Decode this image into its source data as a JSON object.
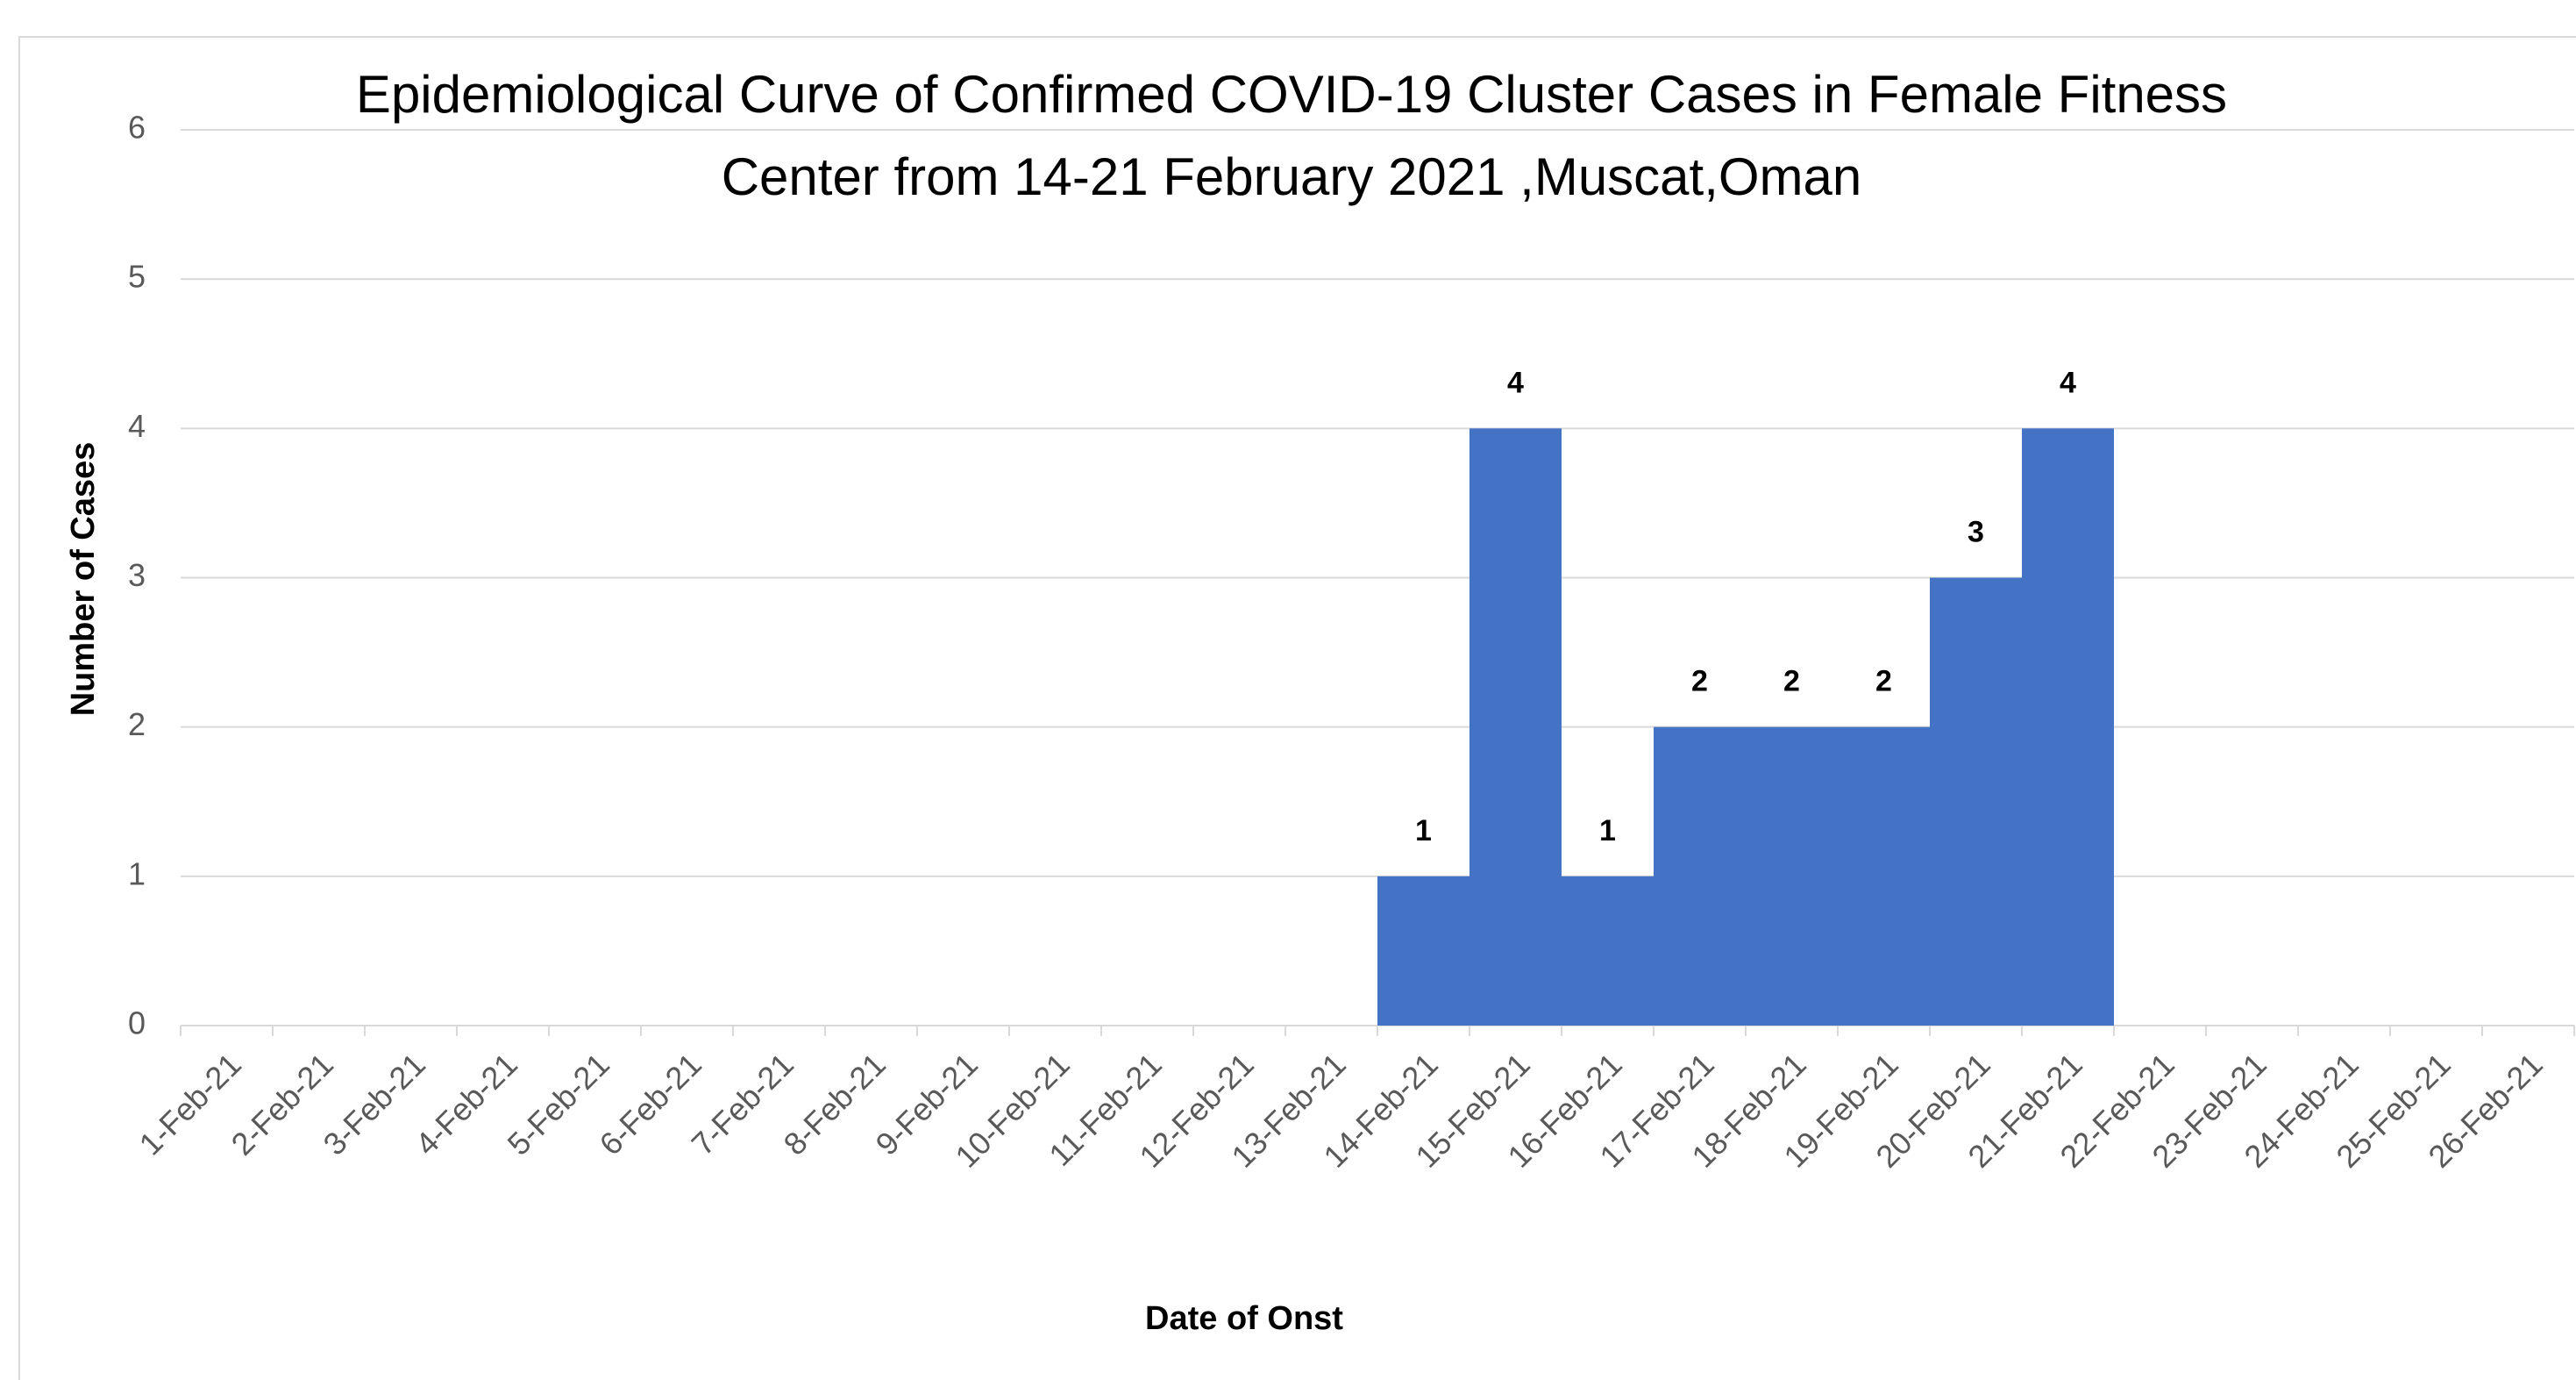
{
  "chart_data": {
    "type": "bar",
    "title": [
      "Epidemiological Curve of Confirmed COVID-19 Cluster Cases in Female Fitness",
      "Center from 14-21 February 2021 ,Muscat,Oman"
    ],
    "x_label": "Date of Onst",
    "y_label": "Number of Cases",
    "categories": [
      "1-Feb-21",
      "2-Feb-21",
      "3-Feb-21",
      "4-Feb-21",
      "5-Feb-21",
      "6-Feb-21",
      "7-Feb-21",
      "8-Feb-21",
      "9-Feb-21",
      "10-Feb-21",
      "11-Feb-21",
      "12-Feb-21",
      "13-Feb-21",
      "14-Feb-21",
      "15-Feb-21",
      "16-Feb-21",
      "17-Feb-21",
      "18-Feb-21",
      "19-Feb-21",
      "20-Feb-21",
      "21-Feb-21",
      "22-Feb-21",
      "23-Feb-21",
      "24-Feb-21",
      "25-Feb-21",
      "26-Feb-21"
    ],
    "values": [
      0,
      0,
      0,
      0,
      0,
      0,
      0,
      0,
      0,
      0,
      0,
      0,
      0,
      1,
      4,
      1,
      2,
      2,
      2,
      3,
      4,
      0,
      0,
      0,
      0,
      0
    ],
    "color": "#4472c4",
    "ylim": [
      0,
      6
    ],
    "yticks": [
      0,
      1,
      2,
      3,
      4,
      5,
      6
    ],
    "grid": true
  }
}
